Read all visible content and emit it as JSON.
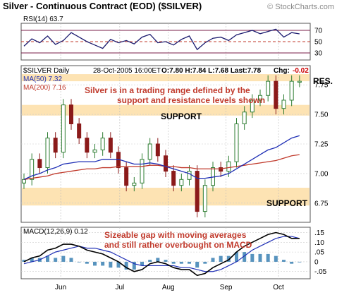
{
  "header": {
    "title": "Silver - Continuous Contract (EOD) ($SILVER)",
    "watermark": "© StockCharts.com"
  },
  "chart_data": [
    {
      "panel": "rsi",
      "type": "line",
      "label": "RSI(14) 63.7",
      "ylim": [
        20,
        80
      ],
      "ticks": [
        "70",
        "50",
        "30"
      ],
      "tick_values": [
        70,
        50,
        30
      ],
      "color": "#1a1a6e",
      "x": [
        0,
        3,
        6,
        9,
        12,
        15,
        18,
        21,
        24,
        27,
        30,
        33,
        36,
        39,
        42,
        45,
        48,
        51,
        54,
        57,
        60,
        63,
        66,
        69,
        72,
        75,
        78,
        81,
        84,
        87,
        90,
        93,
        96,
        99,
        102,
        105
      ],
      "values": [
        42,
        55,
        48,
        60,
        45,
        52,
        66,
        58,
        50,
        44,
        38,
        54,
        48,
        52,
        46,
        58,
        63,
        48,
        50,
        44,
        54,
        60,
        36,
        48,
        56,
        58,
        52,
        62,
        66,
        70,
        64,
        68,
        72,
        58,
        66,
        63.7
      ]
    },
    {
      "panel": "price",
      "type": "candlestick",
      "legend": {
        "symbol": "$SILVER Daily",
        "date": "28-Oct-2005 16:00ET",
        "stats": "O:7.80 H:7.84 L:7.68 Last:7.78",
        "chg_label": "Chg:",
        "chg_value": "-0.02",
        "ma50": "MA(50) 7.32",
        "ma200": "MA(200) 7.16"
      },
      "ylim": [
        6.6,
        7.9
      ],
      "ticks": [
        "7.75",
        "7.50",
        "7.25",
        "7.00",
        "6.75"
      ],
      "tick_values": [
        7.75,
        7.5,
        7.25,
        7.0,
        6.75
      ],
      "bands": [
        {
          "label": "SUPPORT",
          "low": 7.49,
          "high": 7.58
        },
        {
          "label": "SUPPORT",
          "low": 6.73,
          "high": 6.88
        },
        {
          "label": "RES.",
          "low": 7.78,
          "high": 7.84
        }
      ],
      "annotations": [
        "Silver is in a trading range defined by the",
        "support and resistance levels shown"
      ],
      "x": [
        0,
        3,
        6,
        9,
        12,
        15,
        18,
        21,
        24,
        27,
        30,
        33,
        36,
        39,
        42,
        45,
        48,
        51,
        54,
        57,
        60,
        63,
        66,
        69,
        72,
        75,
        78,
        81,
        84,
        87,
        90,
        93,
        96,
        99,
        102,
        105
      ],
      "close": [
        6.95,
        7.12,
        7.05,
        7.3,
        7.18,
        7.58,
        7.42,
        7.3,
        7.18,
        7.2,
        7.3,
        7.18,
        7.05,
        6.9,
        6.92,
        7.12,
        7.25,
        7.15,
        7.02,
        6.9,
        6.95,
        7.02,
        6.68,
        6.9,
        7.05,
        7.02,
        7.1,
        7.42,
        7.52,
        7.62,
        7.66,
        7.78,
        7.55,
        7.62,
        7.78,
        7.78
      ],
      "ma50": [
        6.95,
        6.98,
        7.0,
        7.03,
        7.05,
        7.08,
        7.09,
        7.1,
        7.1,
        7.1,
        7.12,
        7.12,
        7.12,
        7.1,
        7.08,
        7.08,
        7.09,
        7.08,
        7.06,
        7.04,
        7.02,
        7.0,
        6.96,
        6.96,
        6.97,
        6.98,
        7.0,
        7.04,
        7.08,
        7.12,
        7.16,
        7.2,
        7.22,
        7.26,
        7.3,
        7.32
      ],
      "ma200": [
        6.95,
        6.96,
        6.97,
        6.98,
        7.0,
        7.01,
        7.02,
        7.03,
        7.04,
        7.04,
        7.05,
        7.05,
        7.06,
        7.06,
        7.06,
        7.06,
        7.07,
        7.07,
        7.06,
        7.06,
        7.05,
        7.05,
        7.04,
        7.04,
        7.04,
        7.04,
        7.05,
        7.06,
        7.07,
        7.08,
        7.09,
        7.1,
        7.11,
        7.13,
        7.15,
        7.16
      ],
      "colors": {
        "up": "#2e7d32",
        "down": "#8b1a1a",
        "ma50": "#1f2fb5",
        "ma200": "#c0392b",
        "band": "#fde3b3"
      }
    },
    {
      "panel": "macd",
      "type": "line+bar",
      "label": "MACD(12,26,9) 0.12",
      "ylim": [
        -0.08,
        0.17
      ],
      "ticks": [
        ".15",
        ".10",
        ".05",
        "0",
        "-.05"
      ],
      "tick_values": [
        0.15,
        0.1,
        0.05,
        0.0,
        -0.05
      ],
      "annotations": [
        "Sizeable gap with moving averages",
        "and still rather overbought on MACD"
      ],
      "x": [
        0,
        3,
        6,
        9,
        12,
        15,
        18,
        21,
        24,
        27,
        30,
        33,
        36,
        39,
        42,
        45,
        48,
        51,
        54,
        57,
        60,
        63,
        66,
        69,
        72,
        75,
        78,
        81,
        84,
        87,
        90,
        93,
        96,
        99,
        102,
        105
      ],
      "macd": [
        0.0,
        0.02,
        0.03,
        0.06,
        0.07,
        0.09,
        0.09,
        0.08,
        0.06,
        0.05,
        0.04,
        0.02,
        0.0,
        -0.03,
        -0.05,
        -0.04,
        -0.01,
        0.0,
        -0.01,
        -0.03,
        -0.04,
        -0.04,
        -0.07,
        -0.06,
        -0.03,
        -0.01,
        0.01,
        0.05,
        0.08,
        0.1,
        0.12,
        0.14,
        0.15,
        0.14,
        0.12,
        0.12
      ],
      "signal": [
        -0.01,
        0.0,
        0.01,
        0.03,
        0.05,
        0.06,
        0.07,
        0.08,
        0.07,
        0.07,
        0.06,
        0.05,
        0.03,
        0.01,
        -0.01,
        -0.02,
        -0.02,
        -0.02,
        -0.02,
        -0.02,
        -0.03,
        -0.03,
        -0.04,
        -0.05,
        -0.05,
        -0.04,
        -0.02,
        0.0,
        0.03,
        0.06,
        0.08,
        0.1,
        0.12,
        0.13,
        0.13,
        0.12
      ],
      "colors": {
        "macd": "#000000",
        "signal": "#1f2fb5",
        "hist": "#1f6fa8"
      }
    }
  ],
  "x_axis": {
    "months": [
      "Jun",
      "Jul",
      "Aug",
      "Sep",
      "Oct"
    ],
    "month_x": [
      14,
      36.5,
      55,
      77,
      97
    ]
  }
}
